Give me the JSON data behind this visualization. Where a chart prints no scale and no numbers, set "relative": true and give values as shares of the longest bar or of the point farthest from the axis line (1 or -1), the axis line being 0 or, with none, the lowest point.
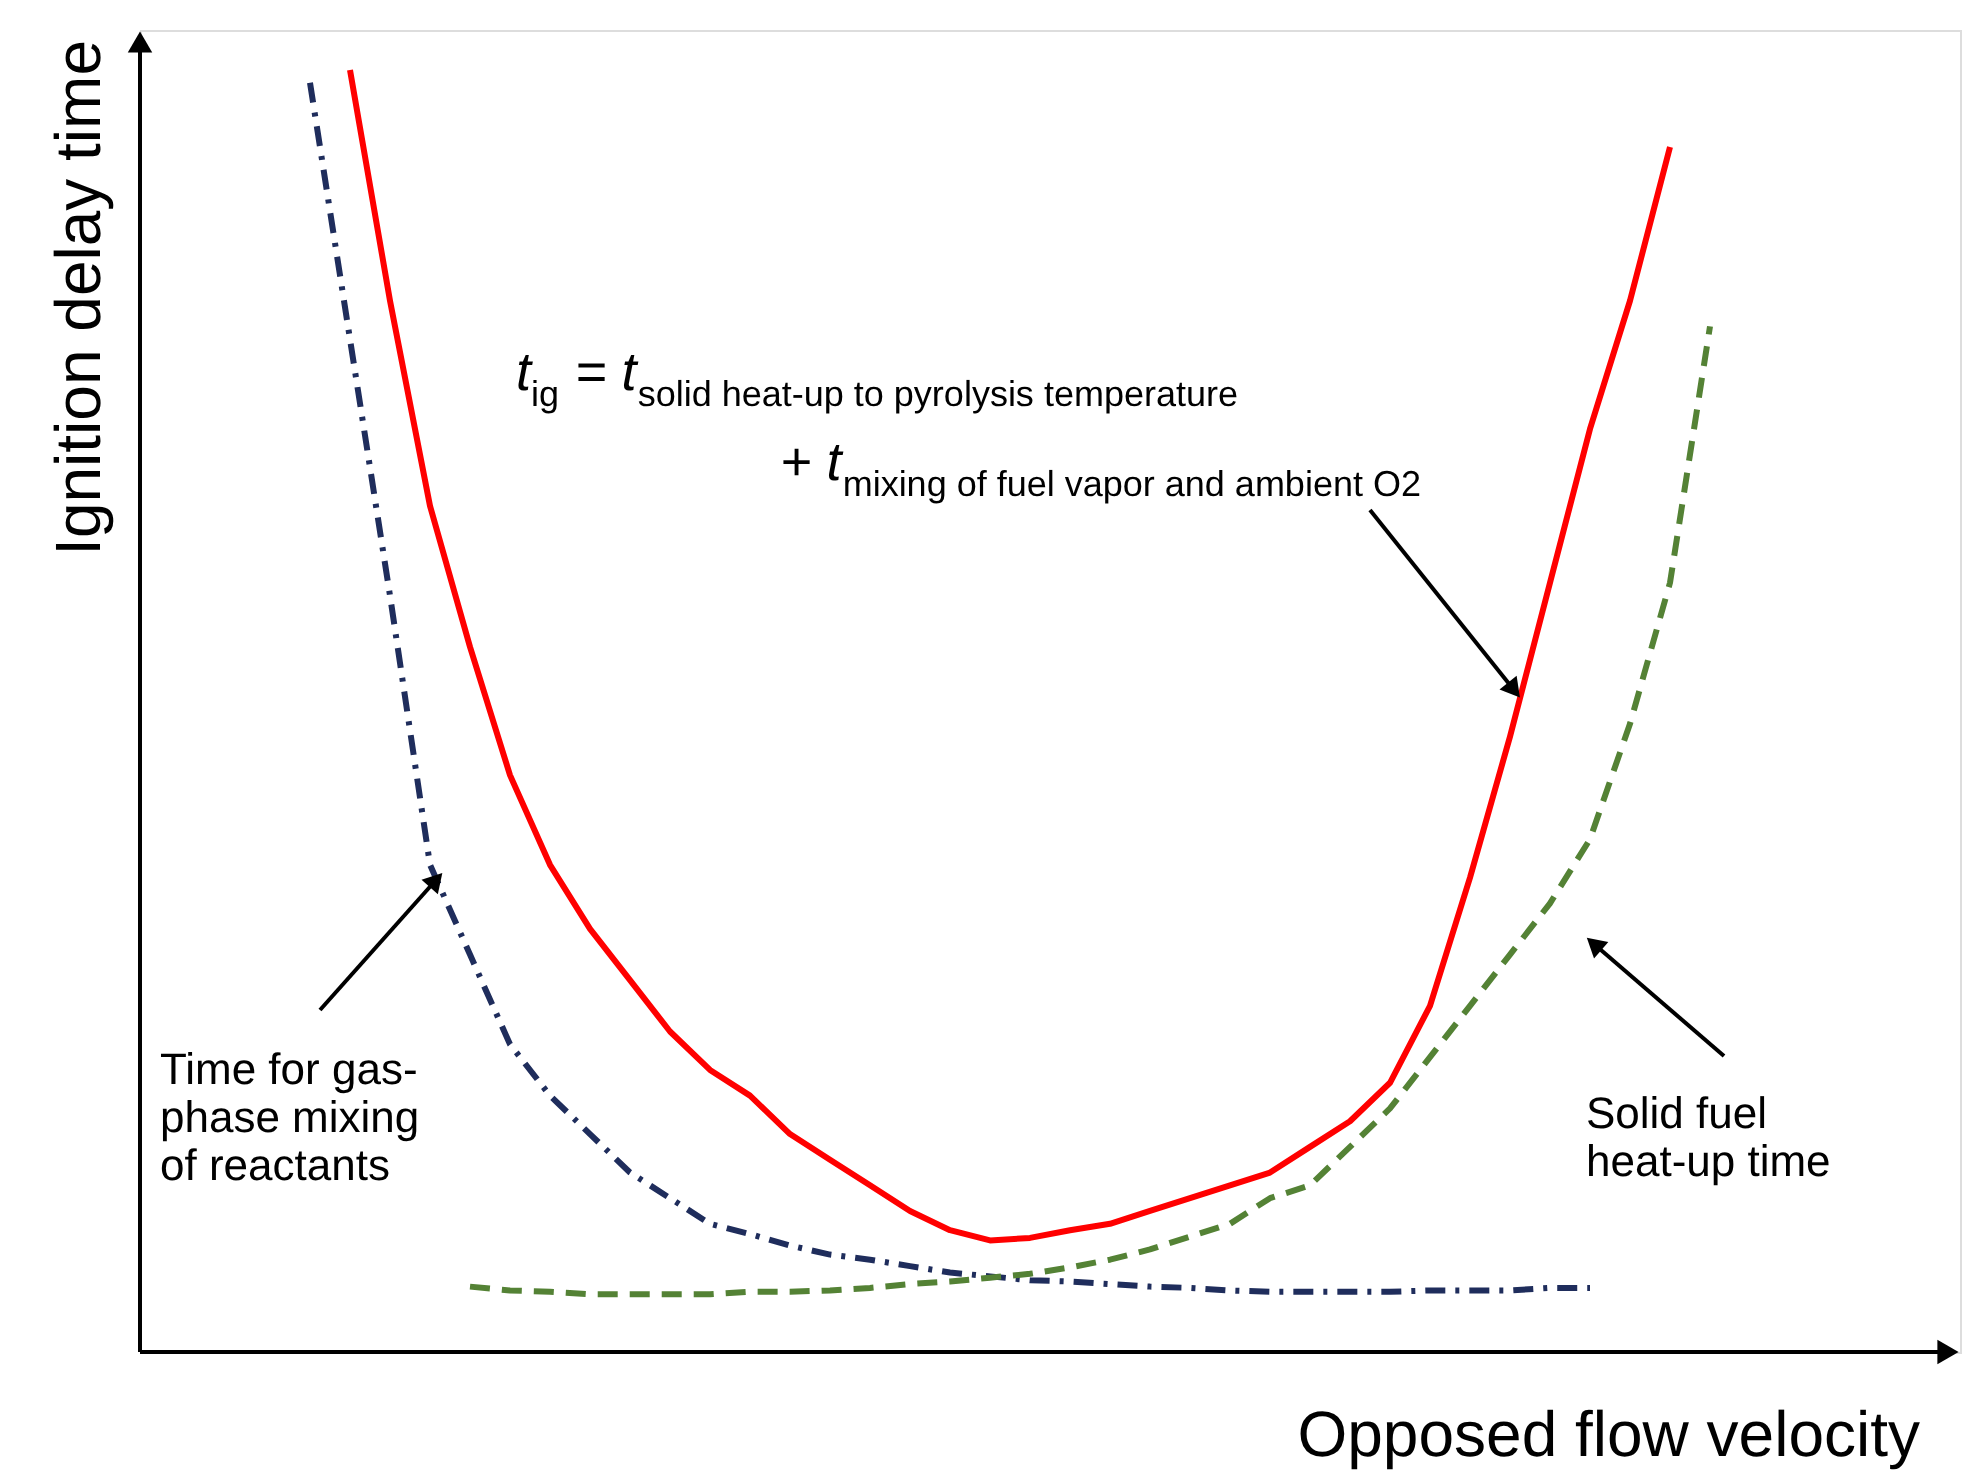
{
  "chart_data": {
    "type": "line",
    "relative": true,
    "xlabel": "Opposed flow velocity",
    "ylabel": "Ignition delay time",
    "categories": [
      null,
      null,
      null,
      null,
      null,
      null,
      null,
      null,
      null,
      null,
      null,
      null,
      null,
      null,
      null,
      null,
      null,
      null,
      null,
      null,
      null,
      null,
      null,
      null,
      null,
      null,
      null,
      null,
      null,
      null,
      null,
      null,
      null,
      null,
      null,
      null,
      null
    ],
    "series": [
      {
        "color": "#ff0000",
        "line_style": "solid",
        "values": [
          null,
          1.0,
          0.82,
          0.66,
          0.55,
          0.45,
          0.38,
          0.33,
          0.29,
          0.25,
          0.22,
          0.2,
          0.17,
          0.15,
          0.13,
          0.11,
          0.095,
          0.087,
          0.089,
          0.095,
          0.1,
          0.11,
          0.12,
          0.13,
          0.14,
          0.16,
          0.18,
          0.21,
          0.27,
          0.37,
          0.48,
          0.6,
          0.72,
          0.82,
          0.94,
          null,
          null
        ]
      },
      {
        "color": "#1f2d5c",
        "line_style": "dashdot",
        "values": [
          0.99,
          0.79,
          0.59,
          0.38,
          0.31,
          0.24,
          0.2,
          0.17,
          0.14,
          0.12,
          0.1,
          0.092,
          0.083,
          0.076,
          0.072,
          0.067,
          0.062,
          0.059,
          0.056,
          0.055,
          0.053,
          0.051,
          0.05,
          0.048,
          0.047,
          0.047,
          0.047,
          0.047,
          0.048,
          0.048,
          0.048,
          0.05,
          0.05,
          null,
          null,
          null,
          null
        ]
      },
      {
        "color": "#548235",
        "line_style": "dashed",
        "values": [
          null,
          null,
          null,
          null,
          0.051,
          0.048,
          0.047,
          0.045,
          0.045,
          0.045,
          0.045,
          0.047,
          0.047,
          0.048,
          0.05,
          0.053,
          0.055,
          0.058,
          0.061,
          0.066,
          0.072,
          0.08,
          0.09,
          0.1,
          0.12,
          0.13,
          0.16,
          0.19,
          0.23,
          0.27,
          0.31,
          0.35,
          0.4,
          0.49,
          0.6,
          0.8,
          null
        ]
      }
    ],
    "annotations": [
      "t$_{ig}$ = t$_{solid heat-up to pyrolysis temperature}$\n+ t$_{mixing of fuel vapor and ambient O2}$",
      "Time for gas-\nphase mixing\nof reactants",
      "Solid fuel\nheat-up time"
    ]
  }
}
